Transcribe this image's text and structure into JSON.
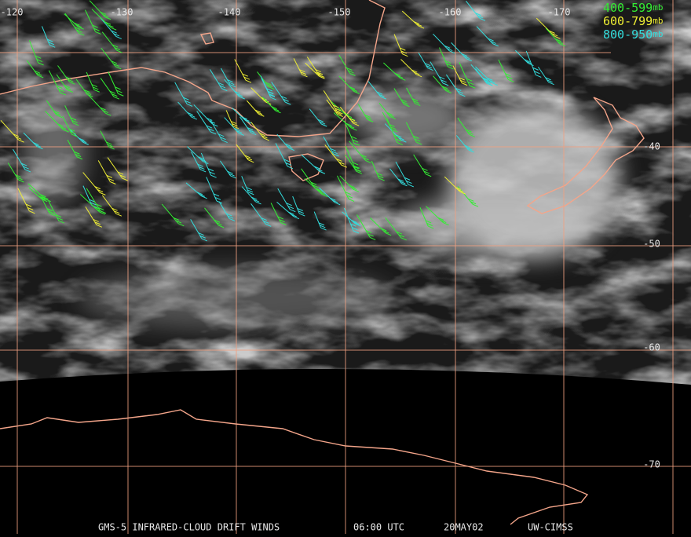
{
  "map": {
    "longitude_labels": [
      "-120",
      "-130",
      "-140",
      "-150",
      "-160",
      "-170"
    ],
    "latitude_labels": [
      "-40",
      "-50",
      "-60",
      "-70"
    ],
    "legend": [
      {
        "range": "400-599",
        "unit": "mb",
        "color": "#33ee33"
      },
      {
        "range": "600-799",
        "unit": "mb",
        "color": "#eeee33"
      },
      {
        "range": "800-950",
        "unit": "mb",
        "color": "#33dddd"
      }
    ],
    "footer": {
      "product": "GMS-5 INFRARED-CLOUD DRIFT WINDS",
      "time": "06:00 UTC",
      "date": "20MAY02",
      "source": "UW-CIMSS"
    }
  }
}
